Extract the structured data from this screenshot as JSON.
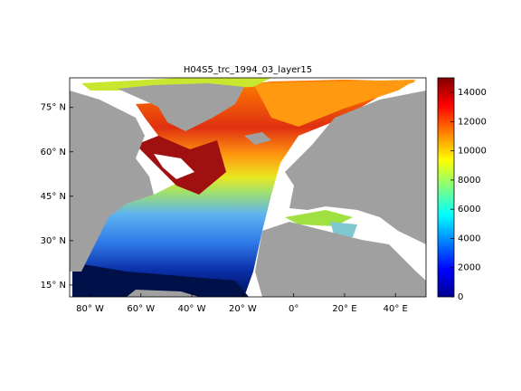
{
  "chart_data": {
    "type": "map",
    "title": "H04S5_trc_1994_03_layer15",
    "xlim": [
      -88,
      52
    ],
    "ylim": [
      11,
      85
    ],
    "xticks": [
      {
        "value": -80,
        "label": "80° W"
      },
      {
        "value": -60,
        "label": "60° W"
      },
      {
        "value": -40,
        "label": "40° W"
      },
      {
        "value": -20,
        "label": "20° W"
      },
      {
        "value": 0,
        "label": "0°"
      },
      {
        "value": 20,
        "label": "20° E"
      },
      {
        "value": 40,
        "label": "40° E"
      }
    ],
    "yticks": [
      {
        "value": 15,
        "label": "15° N"
      },
      {
        "value": 30,
        "label": "30° N"
      },
      {
        "value": 45,
        "label": "45° N"
      },
      {
        "value": 60,
        "label": "60° N"
      },
      {
        "value": 75,
        "label": "75° N"
      }
    ],
    "colorbar": {
      "lim": [
        0,
        15000
      ],
      "ticks": [
        0,
        2000,
        4000,
        6000,
        8000,
        10000,
        12000,
        14000
      ]
    }
  }
}
